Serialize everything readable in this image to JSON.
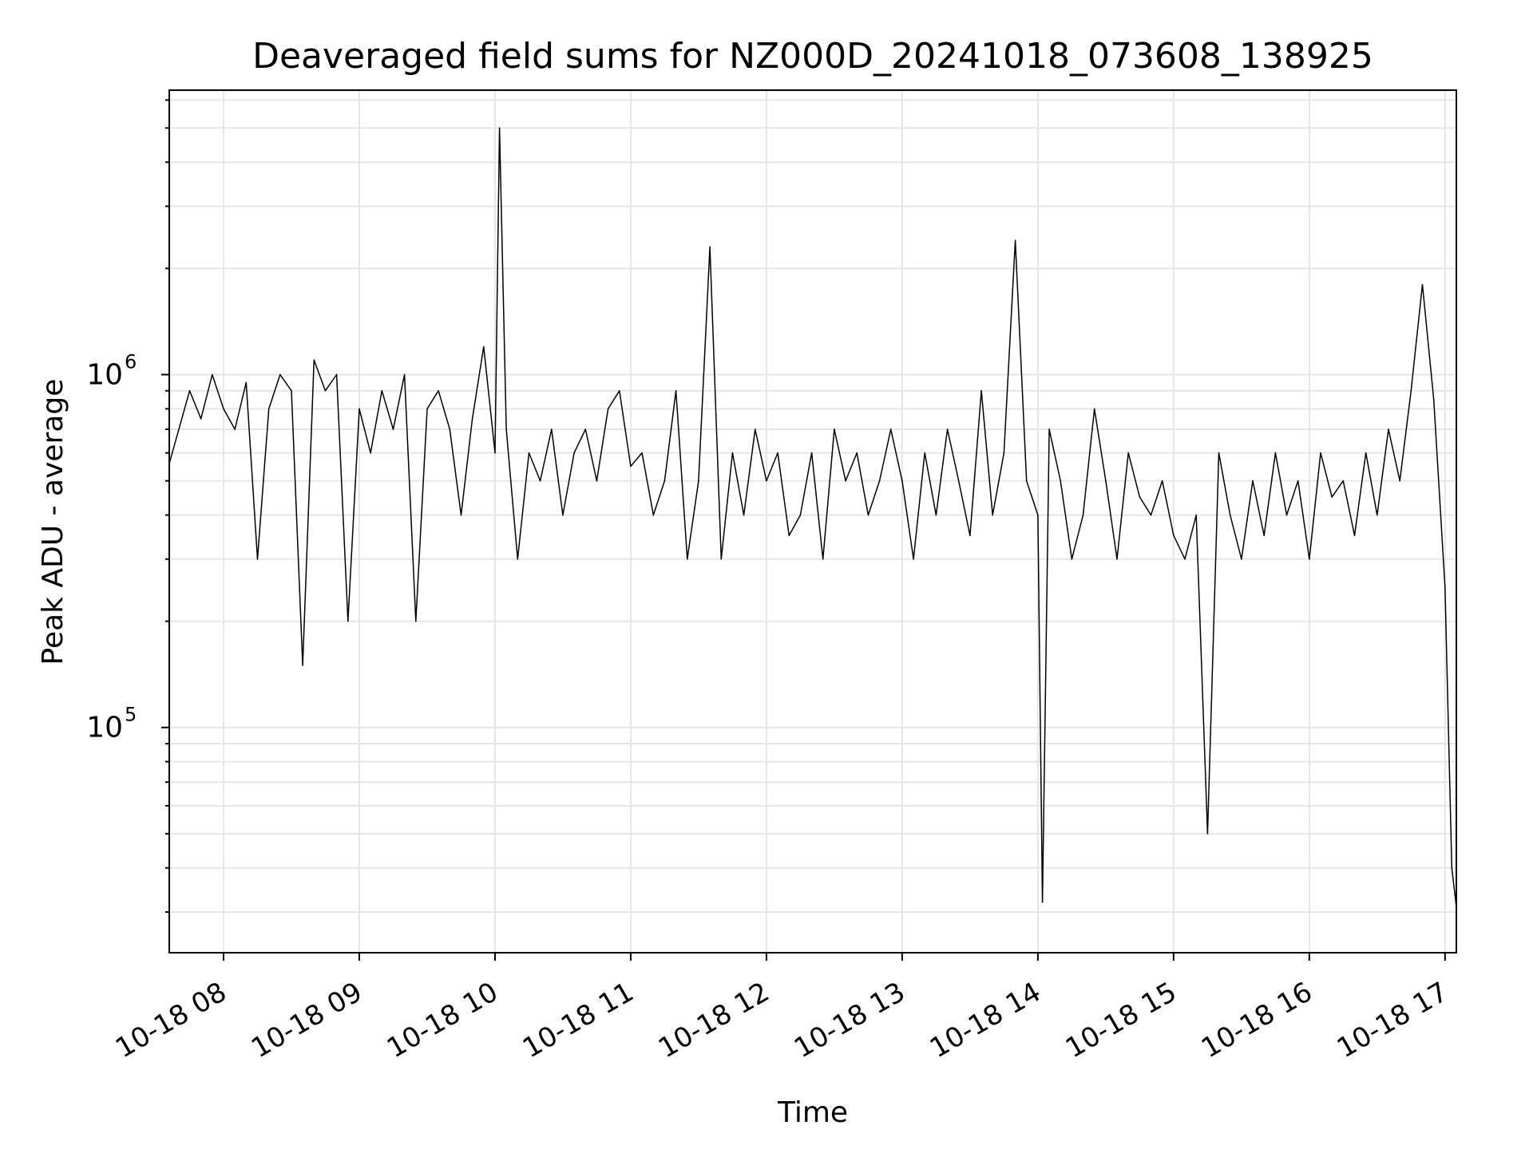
{
  "chart_data": {
    "type": "line",
    "title": "Deaveraged field sums for NZ000D_20241018_073608_138925",
    "xlabel": "Time",
    "ylabel": "Peak ADU - average",
    "y_scale": "log",
    "ylim": [
      23000,
      6400000
    ],
    "xlim": [
      "2024-10-18 07:36:08",
      "2024-10-18 17:05:00"
    ],
    "grid": true,
    "line_color": "#000000",
    "grid_color": "#e6e6e6",
    "x_ticks": [
      {
        "value": "2024-10-18 08:00",
        "label": "10-18 08"
      },
      {
        "value": "2024-10-18 09:00",
        "label": "10-18 09"
      },
      {
        "value": "2024-10-18 10:00",
        "label": "10-18 10"
      },
      {
        "value": "2024-10-18 11:00",
        "label": "10-18 11"
      },
      {
        "value": "2024-10-18 12:00",
        "label": "10-18 12"
      },
      {
        "value": "2024-10-18 13:00",
        "label": "10-18 13"
      },
      {
        "value": "2024-10-18 14:00",
        "label": "10-18 14"
      },
      {
        "value": "2024-10-18 15:00",
        "label": "10-18 15"
      },
      {
        "value": "2024-10-18 16:00",
        "label": "10-18 16"
      },
      {
        "value": "2024-10-18 17:00",
        "label": "10-18 17"
      }
    ],
    "y_ticks": [
      {
        "value": 100000,
        "base": "10",
        "exp": "5"
      },
      {
        "value": 1000000,
        "base": "10",
        "exp": "6"
      }
    ],
    "series": [
      {
        "x": [
          "2024-10-18 07:36",
          "2024-10-18 07:45",
          "2024-10-18 07:50",
          "2024-10-18 07:55",
          "2024-10-18 08:00",
          "2024-10-18 08:05",
          "2024-10-18 08:10",
          "2024-10-18 08:15",
          "2024-10-18 08:20",
          "2024-10-18 08:25",
          "2024-10-18 08:30",
          "2024-10-18 08:35",
          "2024-10-18 08:40",
          "2024-10-18 08:45",
          "2024-10-18 08:50",
          "2024-10-18 08:55",
          "2024-10-18 09:00",
          "2024-10-18 09:05",
          "2024-10-18 09:10",
          "2024-10-18 09:15",
          "2024-10-18 09:20",
          "2024-10-18 09:25",
          "2024-10-18 09:30",
          "2024-10-18 09:35",
          "2024-10-18 09:40",
          "2024-10-18 09:45",
          "2024-10-18 09:50",
          "2024-10-18 09:55",
          "2024-10-18 10:00",
          "2024-10-18 10:02",
          "2024-10-18 10:05",
          "2024-10-18 10:10",
          "2024-10-18 10:15",
          "2024-10-18 10:20",
          "2024-10-18 10:25",
          "2024-10-18 10:30",
          "2024-10-18 10:35",
          "2024-10-18 10:40",
          "2024-10-18 10:45",
          "2024-10-18 10:50",
          "2024-10-18 10:55",
          "2024-10-18 11:00",
          "2024-10-18 11:05",
          "2024-10-18 11:10",
          "2024-10-18 11:15",
          "2024-10-18 11:20",
          "2024-10-18 11:25",
          "2024-10-18 11:30",
          "2024-10-18 11:35",
          "2024-10-18 11:40",
          "2024-10-18 11:45",
          "2024-10-18 11:50",
          "2024-10-18 11:55",
          "2024-10-18 12:00",
          "2024-10-18 12:05",
          "2024-10-18 12:10",
          "2024-10-18 12:15",
          "2024-10-18 12:20",
          "2024-10-18 12:25",
          "2024-10-18 12:30",
          "2024-10-18 12:35",
          "2024-10-18 12:40",
          "2024-10-18 12:45",
          "2024-10-18 12:50",
          "2024-10-18 12:55",
          "2024-10-18 13:00",
          "2024-10-18 13:05",
          "2024-10-18 13:10",
          "2024-10-18 13:15",
          "2024-10-18 13:20",
          "2024-10-18 13:25",
          "2024-10-18 13:30",
          "2024-10-18 13:35",
          "2024-10-18 13:40",
          "2024-10-18 13:45",
          "2024-10-18 13:50",
          "2024-10-18 13:55",
          "2024-10-18 14:00",
          "2024-10-18 14:02",
          "2024-10-18 14:05",
          "2024-10-18 14:10",
          "2024-10-18 14:15",
          "2024-10-18 14:20",
          "2024-10-18 14:25",
          "2024-10-18 14:30",
          "2024-10-18 14:35",
          "2024-10-18 14:40",
          "2024-10-18 14:45",
          "2024-10-18 14:50",
          "2024-10-18 14:55",
          "2024-10-18 15:00",
          "2024-10-18 15:05",
          "2024-10-18 15:10",
          "2024-10-18 15:15",
          "2024-10-18 15:20",
          "2024-10-18 15:25",
          "2024-10-18 15:30",
          "2024-10-18 15:35",
          "2024-10-18 15:40",
          "2024-10-18 15:45",
          "2024-10-18 15:50",
          "2024-10-18 15:55",
          "2024-10-18 16:00",
          "2024-10-18 16:05",
          "2024-10-18 16:10",
          "2024-10-18 16:15",
          "2024-10-18 16:20",
          "2024-10-18 16:25",
          "2024-10-18 16:30",
          "2024-10-18 16:35",
          "2024-10-18 16:40",
          "2024-10-18 16:45",
          "2024-10-18 16:50",
          "2024-10-18 16:55",
          "2024-10-18 17:00",
          "2024-10-18 17:03",
          "2024-10-18 17:05"
        ],
        "y": [
          560000,
          900000,
          750000,
          1000000,
          800000,
          700000,
          950000,
          300000,
          800000,
          1000000,
          900000,
          150000,
          1100000,
          900000,
          1000000,
          200000,
          800000,
          600000,
          900000,
          700000,
          1000000,
          200000,
          800000,
          900000,
          700000,
          400000,
          750000,
          1200000,
          600000,
          5000000,
          700000,
          300000,
          600000,
          500000,
          700000,
          400000,
          600000,
          700000,
          500000,
          800000,
          900000,
          550000,
          600000,
          400000,
          500000,
          900000,
          300000,
          500000,
          2300000,
          300000,
          600000,
          400000,
          700000,
          500000,
          600000,
          350000,
          400000,
          600000,
          300000,
          700000,
          500000,
          600000,
          400000,
          500000,
          700000,
          500000,
          300000,
          600000,
          400000,
          700000,
          500000,
          350000,
          900000,
          400000,
          600000,
          2400000,
          500000,
          400000,
          32000,
          700000,
          500000,
          300000,
          400000,
          800000,
          500000,
          300000,
          600000,
          450000,
          400000,
          500000,
          350000,
          300000,
          400000,
          50000,
          600000,
          400000,
          300000,
          500000,
          350000,
          600000,
          400000,
          500000,
          300000,
          600000,
          450000,
          500000,
          350000,
          600000,
          400000,
          700000,
          500000,
          900000,
          1800000,
          850000,
          250000,
          40000,
          31000
        ]
      }
    ]
  }
}
